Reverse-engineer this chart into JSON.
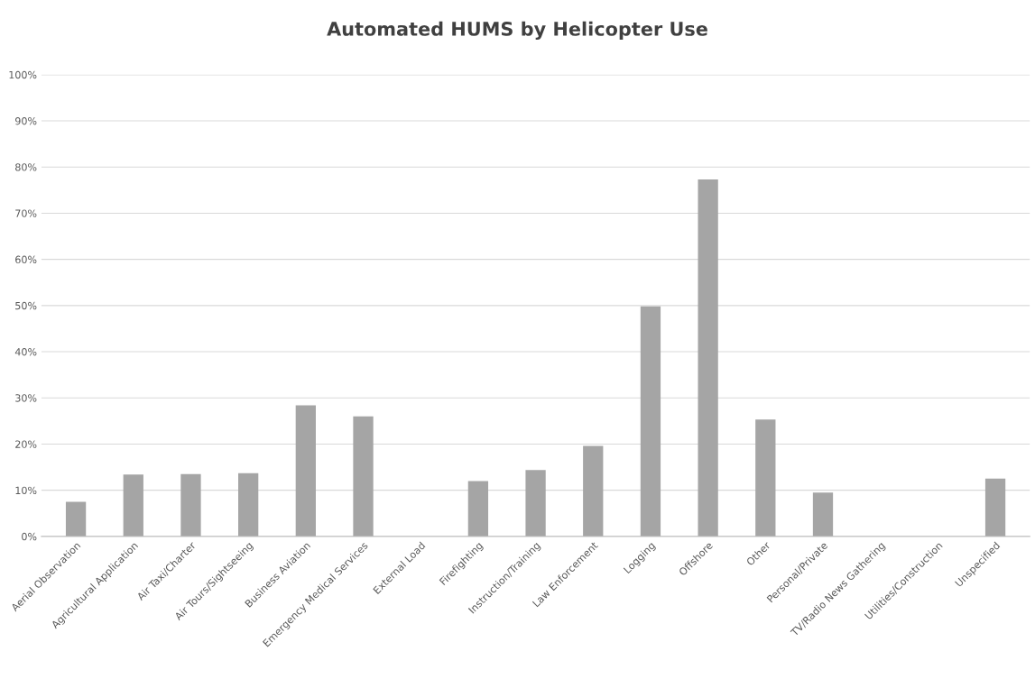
{
  "chart_data": {
    "type": "bar",
    "title": "Automated HUMS by Helicopter Use",
    "categories": [
      "Aerial Observation",
      "Agricultural Application",
      "Air Taxi/Charter",
      "Air Tours/Sightseeing",
      "Business Aviation",
      "Emergency Medical Services",
      "External Load",
      "Firefighting",
      "Instruction/Training",
      "Law Enforcement",
      "Logging",
      "Offshore",
      "Other",
      "Personal/Private",
      "TV/Radio News Gathering",
      "Utilities/Construction",
      "Unspecified"
    ],
    "values": [
      7.5,
      13.4,
      13.5,
      13.7,
      28.4,
      26,
      0,
      12,
      14.4,
      19.6,
      49.8,
      77.3,
      25.3,
      9.5,
      0,
      0,
      12.5
    ],
    "color": "#a5a5a5",
    "ylim": [
      0,
      100
    ],
    "yticks": [
      {
        "value": 0,
        "label": "0%"
      },
      {
        "value": 10,
        "label": "10%"
      },
      {
        "value": 20,
        "label": "20%"
      },
      {
        "value": 30,
        "label": "30%"
      },
      {
        "value": 40,
        "label": "40%"
      },
      {
        "value": 50,
        "label": "50%"
      },
      {
        "value": 60,
        "label": "60%"
      },
      {
        "value": 70,
        "label": "70%"
      },
      {
        "value": 80,
        "label": "80%"
      },
      {
        "value": 90,
        "label": "90%"
      },
      {
        "value": 100,
        "label": "100%"
      }
    ],
    "grid": "y"
  }
}
